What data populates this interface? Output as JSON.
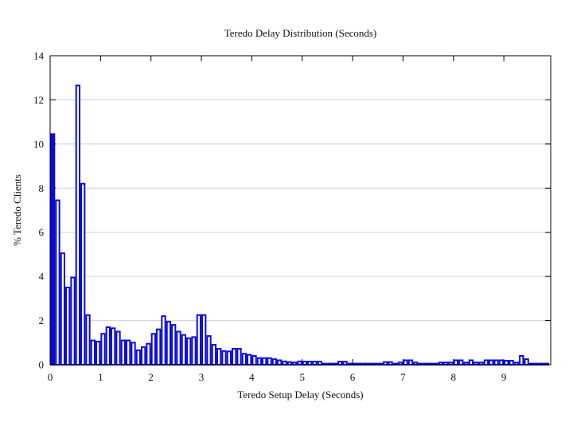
{
  "chart_data": {
    "type": "bar",
    "title": "Teredo Delay Distribution (Seconds)",
    "xlabel": "Teredo Setup Delay (Seconds)",
    "ylabel": "% Teredo Clients",
    "xlim": [
      0,
      9.93
    ],
    "ylim": [
      0,
      14
    ],
    "x_ticks": [
      0,
      1,
      2,
      3,
      4,
      5,
      6,
      7,
      8,
      9
    ],
    "y_ticks": [
      0,
      2,
      4,
      6,
      8,
      10,
      12,
      14
    ],
    "grid": "horizontal-only",
    "legend": "none",
    "bar_color": "#0A0ADB",
    "grid_color": "#D0D0D0",
    "axis_color": "#000000",
    "background_color": "#FFFFFF",
    "x_start": 0.0,
    "bin_width": 0.1,
    "first_bin_filled": true,
    "values": [
      10.45,
      7.45,
      5.05,
      3.5,
      3.95,
      12.65,
      8.2,
      2.25,
      1.1,
      1.05,
      1.4,
      1.7,
      1.65,
      1.5,
      1.1,
      1.1,
      1.0,
      0.65,
      0.8,
      0.95,
      1.4,
      1.6,
      2.2,
      1.95,
      1.8,
      1.5,
      1.35,
      1.2,
      1.25,
      2.25,
      2.25,
      1.3,
      0.9,
      0.72,
      0.62,
      0.6,
      0.72,
      0.72,
      0.5,
      0.45,
      0.4,
      0.3,
      0.3,
      0.3,
      0.25,
      0.2,
      0.15,
      0.12,
      0.1,
      0.15,
      0.14,
      0.14,
      0.14,
      0.14,
      0.05,
      0.05,
      0.05,
      0.14,
      0.14,
      0.05,
      0.05,
      0.05,
      0.05,
      0.05,
      0.05,
      0.05,
      0.12,
      0.12,
      0.05,
      0.1,
      0.2,
      0.2,
      0.1,
      0.05,
      0.05,
      0.05,
      0.05,
      0.1,
      0.1,
      0.1,
      0.2,
      0.2,
      0.1,
      0.2,
      0.1,
      0.1,
      0.2,
      0.2,
      0.2,
      0.2,
      0.18,
      0.18,
      0.1,
      0.4,
      0.25,
      0.05,
      0.05,
      0.05,
      0.05
    ]
  }
}
